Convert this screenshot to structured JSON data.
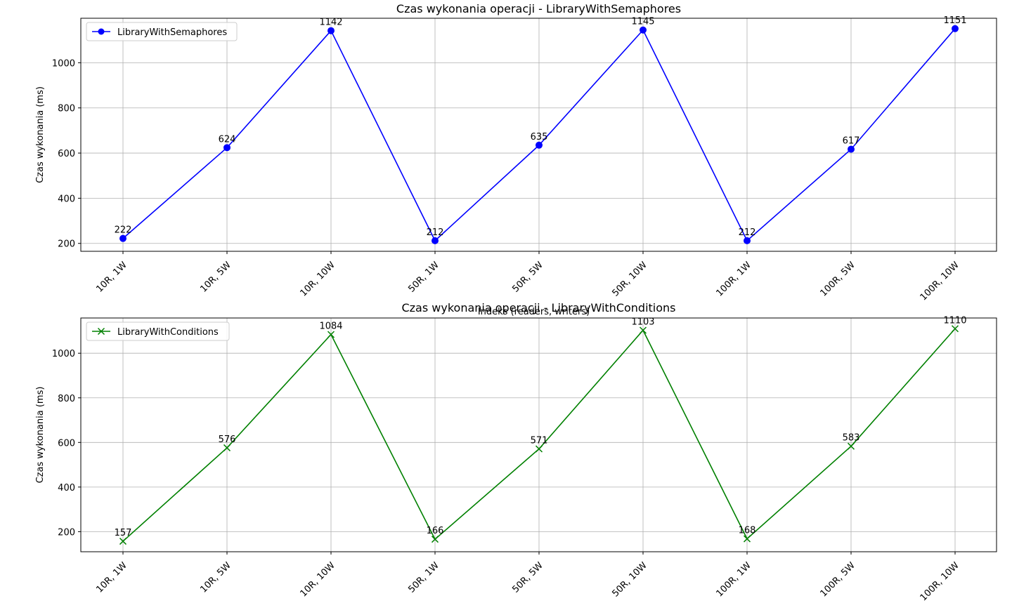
{
  "chart_data": [
    {
      "type": "line",
      "title": "Czas wykonania operacji - LibraryWithSemaphores",
      "xlabel": "Indeks (readers, writers)",
      "ylabel": "Czas wykonania (ms)",
      "categories": [
        "10R, 1W",
        "10R, 5W",
        "10R, 10W",
        "50R, 1W",
        "50R, 5W",
        "50R, 10W",
        "100R, 1W",
        "100R, 5W",
        "100R, 10W"
      ],
      "series": [
        {
          "name": "LibraryWithSemaphores",
          "values": [
            222,
            624,
            1142,
            212,
            635,
            1145,
            212,
            617,
            1151
          ],
          "color": "#0000ff",
          "marker": "circle"
        }
      ],
      "yticks": [
        200,
        400,
        600,
        800,
        1000
      ],
      "ylim": [
        165,
        1197
      ],
      "grid": true,
      "legend": "top-left"
    },
    {
      "type": "line",
      "title": "Czas wykonania operacji - LibraryWithConditions",
      "xlabel": "",
      "ylabel": "Czas wykonania (ms)",
      "categories": [
        "10R, 1W",
        "10R, 5W",
        "10R, 10W",
        "50R, 1W",
        "50R, 5W",
        "50R, 10W",
        "100R, 1W",
        "100R, 5W",
        "100R, 10W"
      ],
      "series": [
        {
          "name": "LibraryWithConditions",
          "values": [
            157,
            576,
            1084,
            166,
            571,
            1103,
            168,
            583,
            1110
          ],
          "color": "#008000",
          "marker": "x"
        }
      ],
      "yticks": [
        200,
        400,
        600,
        800,
        1000
      ],
      "ylim": [
        110,
        1158
      ],
      "grid": true,
      "legend": "top-left"
    }
  ]
}
